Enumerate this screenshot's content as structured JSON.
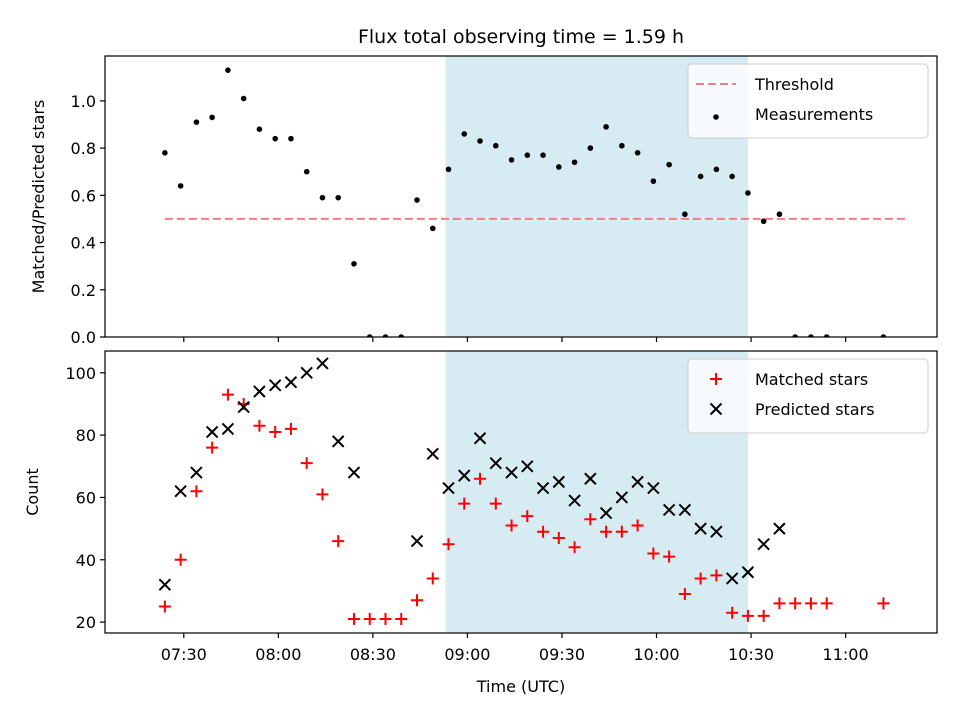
{
  "chart_data": [
    {
      "type": "scatter",
      "title": "Flux total observing time = 1.59 h",
      "xlabel": "",
      "ylabel": "Matched/Predicted stars",
      "ylim": [
        0,
        1.19
      ],
      "yticks": [
        0.0,
        0.2,
        0.4,
        0.6,
        0.8,
        1.0
      ],
      "ytick_labels": [
        "0.0",
        "0.2",
        "0.4",
        "0.6",
        "0.8",
        "1.0"
      ],
      "x_unit": "time (UTC)",
      "xlim": [
        "07:05",
        "11:29"
      ],
      "shaded_interval": [
        "08:53",
        "10:29"
      ],
      "shade_color": "#add8e6",
      "legend_position": "top-right",
      "grid": false,
      "series": [
        {
          "name": "Threshold",
          "kind": "line",
          "style": "dashed",
          "color": "#f08080",
          "x": [
            "07:24",
            "11:20"
          ],
          "y": [
            0.5,
            0.5
          ]
        },
        {
          "name": "Measurements",
          "kind": "scatter",
          "marker": "dot",
          "color": "#000000",
          "x": [
            "07:24",
            "07:29",
            "07:34",
            "07:39",
            "07:44",
            "07:49",
            "07:54",
            "07:59",
            "08:04",
            "08:09",
            "08:14",
            "08:19",
            "08:24",
            "08:29",
            "08:34",
            "08:39",
            "08:44",
            "08:49",
            "08:54",
            "08:59",
            "09:04",
            "09:09",
            "09:14",
            "09:19",
            "09:24",
            "09:29",
            "09:34",
            "09:39",
            "09:44",
            "09:49",
            "09:54",
            "09:59",
            "10:04",
            "10:09",
            "10:14",
            "10:19",
            "10:24",
            "10:29",
            "10:34",
            "10:39",
            "10:44",
            "10:49",
            "10:54",
            "11:12"
          ],
          "y": [
            0.78,
            0.64,
            0.91,
            0.93,
            1.13,
            1.01,
            0.88,
            0.84,
            0.84,
            0.7,
            0.59,
            0.59,
            0.31,
            0.0,
            0.0,
            0.0,
            0.58,
            0.46,
            0.71,
            0.86,
            0.83,
            0.81,
            0.75,
            0.77,
            0.77,
            0.72,
            0.74,
            0.8,
            0.89,
            0.81,
            0.78,
            0.66,
            0.73,
            0.52,
            0.68,
            0.71,
            0.68,
            0.61,
            0.49,
            0.52,
            0.0,
            0.0,
            0.0,
            0.0
          ]
        }
      ]
    },
    {
      "type": "scatter",
      "title": "",
      "xlabel": "Time (UTC)",
      "ylabel": "Count",
      "ylim": [
        16.5,
        107
      ],
      "yticks": [
        20,
        40,
        60,
        80,
        100
      ],
      "ytick_labels": [
        "20",
        "40",
        "60",
        "80",
        "100"
      ],
      "xticks": [
        "07:30",
        "08:00",
        "08:30",
        "09:00",
        "09:30",
        "10:00",
        "10:30",
        "11:00"
      ],
      "xlim": [
        "07:05",
        "11:29"
      ],
      "shaded_interval": [
        "08:53",
        "10:29"
      ],
      "shade_color": "#add8e6",
      "legend_position": "top-right",
      "grid": false,
      "series": [
        {
          "name": "Matched stars",
          "kind": "scatter",
          "marker": "plus",
          "color": "#ff0000",
          "x": [
            "07:24",
            "07:29",
            "07:34",
            "07:39",
            "07:44",
            "07:49",
            "07:54",
            "07:59",
            "08:04",
            "08:09",
            "08:14",
            "08:19",
            "08:24",
            "08:29",
            "08:34",
            "08:39",
            "08:44",
            "08:49",
            "08:54",
            "08:59",
            "09:04",
            "09:09",
            "09:14",
            "09:19",
            "09:24",
            "09:29",
            "09:34",
            "09:39",
            "09:44",
            "09:49",
            "09:54",
            "09:59",
            "10:04",
            "10:09",
            "10:14",
            "10:19",
            "10:24",
            "10:29",
            "10:34",
            "10:39",
            "10:44",
            "10:49",
            "10:54",
            "11:12"
          ],
          "y": [
            25,
            40,
            62,
            76,
            93,
            90,
            83,
            81,
            82,
            71,
            61,
            46,
            21,
            21,
            21,
            21,
            27,
            34,
            45,
            58,
            66,
            58,
            51,
            54,
            49,
            47,
            44,
            53,
            49,
            49,
            51,
            42,
            41,
            29,
            34,
            35,
            23,
            22,
            22,
            26,
            26,
            26,
            26,
            26
          ]
        },
        {
          "name": "Predicted stars",
          "kind": "scatter",
          "marker": "x",
          "color": "#000000",
          "x": [
            "07:24",
            "07:29",
            "07:34",
            "07:39",
            "07:44",
            "07:49",
            "07:54",
            "07:59",
            "08:04",
            "08:09",
            "08:14",
            "08:19",
            "08:24",
            "08:44",
            "08:49",
            "08:54",
            "08:59",
            "09:04",
            "09:09",
            "09:14",
            "09:19",
            "09:24",
            "09:29",
            "09:34",
            "09:39",
            "09:44",
            "09:49",
            "09:54",
            "09:59",
            "10:04",
            "10:09",
            "10:14",
            "10:19",
            "10:24",
            "10:29",
            "10:34",
            "10:39"
          ],
          "y": [
            32,
            62,
            68,
            81,
            82,
            89,
            94,
            96,
            97,
            100,
            103,
            78,
            68,
            46,
            74,
            63,
            67,
            79,
            71,
            68,
            70,
            63,
            65,
            59,
            66,
            55,
            60,
            65,
            63,
            56,
            56,
            50,
            49,
            34,
            36,
            45,
            50
          ]
        }
      ]
    }
  ]
}
